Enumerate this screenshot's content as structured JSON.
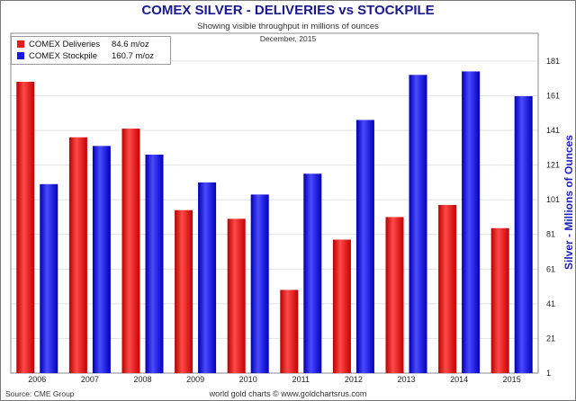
{
  "chart_data": {
    "type": "bar",
    "title": "COMEX SILVER - DELIVERIES vs STOCKPILE",
    "subtitle": "Showing visible throughput in millions of ounces",
    "date_note": "December, 2015",
    "ylabel": "Silver - Millions of Ounces",
    "y_ticks": [
      1,
      21,
      41,
      61,
      81,
      101,
      121,
      141,
      161,
      181
    ],
    "ylim": [
      1,
      197
    ],
    "grid": true,
    "legend_position": "top-left",
    "categories": [
      "2006",
      "2007",
      "2008",
      "2009",
      "2010",
      "2011",
      "2012",
      "2013",
      "2014",
      "2015"
    ],
    "series": [
      {
        "name": "COMEX Deliveries",
        "legend_value": "84.6 m/oz",
        "color": "#e81818",
        "values": [
          169,
          137,
          142,
          95,
          90,
          49,
          78,
          91,
          98,
          84.6
        ]
      },
      {
        "name": "COMEX Stockpile",
        "legend_value": "160.7 m/oz",
        "color": "#1818e8",
        "values": [
          110,
          132,
          127,
          111,
          104,
          116,
          147,
          173,
          175,
          160.7
        ]
      }
    ]
  },
  "footer": {
    "source": "Source: CME Group",
    "credit": "world gold charts © www.goldchartsrus.com"
  }
}
